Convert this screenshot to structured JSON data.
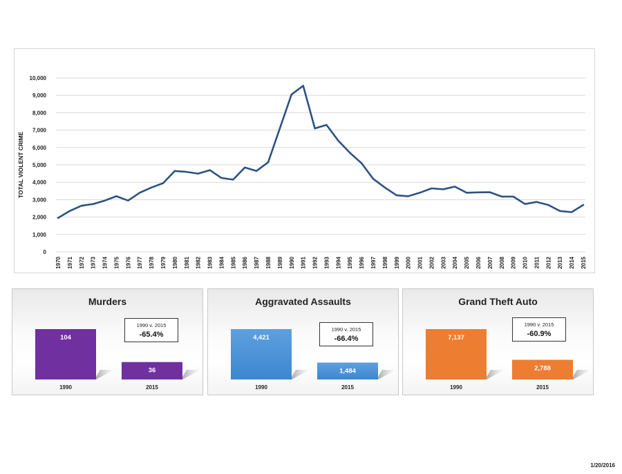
{
  "chart_data": [
    {
      "type": "line",
      "title": "",
      "ylabel": "TOTAL VIOLENT CRIME",
      "xlabel": "",
      "ylim": [
        0,
        10000
      ],
      "y_ticks": [
        0,
        1000,
        2000,
        3000,
        4000,
        5000,
        6000,
        7000,
        8000,
        9000,
        10000
      ],
      "y_tick_labels": [
        "0",
        "1,000",
        "2,000",
        "3,000",
        "4,000",
        "5,000",
        "6,000",
        "7,000",
        "8,000",
        "9,000",
        "10,000"
      ],
      "grid": true,
      "line_color": "#2b5283",
      "x": [
        "1970",
        "1971",
        "1972",
        "1973",
        "1974",
        "1975",
        "1976",
        "1977",
        "1978",
        "1979",
        "1980",
        "1981",
        "1982",
        "1983",
        "1984",
        "1985",
        "1986",
        "1987",
        "1988",
        "1989",
        "1990",
        "1991",
        "1992",
        "1993",
        "1994",
        "1995",
        "1996",
        "1997",
        "1998",
        "1999",
        "2000",
        "2001",
        "2002",
        "2003",
        "2004",
        "2005",
        "2006",
        "2007",
        "2008",
        "2009",
        "2010",
        "2011",
        "2012",
        "2013",
        "2014",
        "2015"
      ],
      "series": [
        {
          "values": [
            1950,
            2350,
            2650,
            2750,
            2950,
            3200,
            2950,
            3400,
            3700,
            3950,
            4650,
            4600,
            4500,
            4700,
            4250,
            4150,
            4850,
            4650,
            5150,
            7100,
            9050,
            9550,
            7100,
            7300,
            6400,
            5700,
            5100,
            4200,
            3700,
            3250,
            3200,
            3400,
            3650,
            3600,
            3750,
            3400,
            3420,
            3430,
            3180,
            3180,
            2750,
            2870,
            2700,
            2350,
            2280,
            2700
          ]
        }
      ]
    },
    {
      "type": "bar",
      "title": "Murders",
      "categories": [
        "1990",
        "2015"
      ],
      "values": [
        104,
        36
      ],
      "value_labels": [
        "104",
        "36"
      ],
      "color": "#7030a0",
      "comparison": {
        "label": "1990 v. 2015",
        "value": "-65.4%"
      }
    },
    {
      "type": "bar",
      "title": "Aggravated Assaults",
      "categories": [
        "1990",
        "2015"
      ],
      "values": [
        4421,
        1484
      ],
      "value_labels": [
        "4,421",
        "1,484"
      ],
      "color": "#3a87d0",
      "color_light": "#5fa0de",
      "comparison": {
        "label": "1990 v. 2015",
        "value": "-66.4%"
      }
    },
    {
      "type": "bar",
      "title": "Grand Theft Auto",
      "categories": [
        "1990",
        "2015"
      ],
      "values": [
        7137,
        2788
      ],
      "value_labels": [
        "7,137",
        "2,788"
      ],
      "color": "#ed7d31",
      "comparison": {
        "label": "1990 v. 2015",
        "value": "-60.9%"
      }
    }
  ],
  "footer": {
    "date": "1/20/2016"
  }
}
